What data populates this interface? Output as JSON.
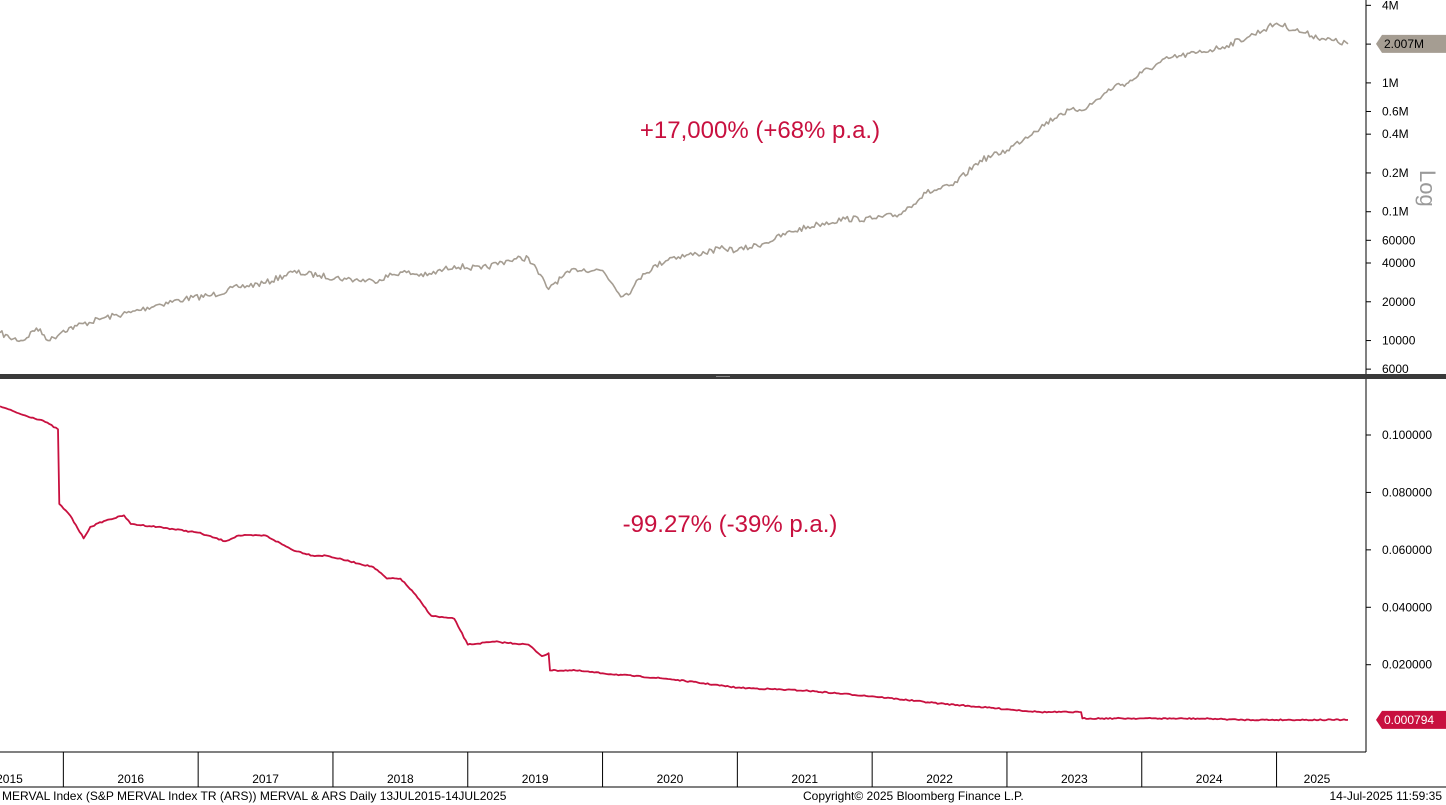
{
  "colors": {
    "merval": "#a59d92",
    "ars": "#c8103f",
    "ars_badge": "#c8103f",
    "merval_badge": "#a59d92"
  },
  "footer": {
    "left": "MERVAL Index (S&P MERVAL Index TR (ARS)) MERVAL & ARS  Daily 13JUL2015-14JUL2025",
    "center": "Copyright© 2025 Bloomberg Finance L.P.",
    "right": "14-Jul-2025 11:59:35"
  },
  "chart_data": [
    {
      "type": "line",
      "scale": "log",
      "scale_label": "Log",
      "annotation": "+17,000% (+68% p.a.)",
      "last_value_label": "2.007M",
      "y_ticks": [
        {
          "v": 4000000,
          "label": "4M"
        },
        {
          "v": 2000000,
          "label": "2M"
        },
        {
          "v": 1000000,
          "label": "1M"
        },
        {
          "v": 600000,
          "label": "0.6M"
        },
        {
          "v": 400000,
          "label": "0.4M"
        },
        {
          "v": 200000,
          "label": "0.2M"
        },
        {
          "v": 100000,
          "label": "0.1M"
        },
        {
          "v": 60000,
          "label": "60000"
        },
        {
          "v": 40000,
          "label": "40000"
        },
        {
          "v": 20000,
          "label": "20000"
        },
        {
          "v": 10000,
          "label": "10000"
        },
        {
          "v": 6000,
          "label": "6000"
        }
      ],
      "ylim": [
        5500,
        4400000
      ],
      "x": [
        2015.53,
        2015.6,
        2015.7,
        2015.8,
        2015.9,
        2016.0,
        2016.1,
        2016.3,
        2016.5,
        2016.7,
        2016.9,
        2017.1,
        2017.3,
        2017.5,
        2017.7,
        2017.9,
        2018.1,
        2018.3,
        2018.5,
        2018.7,
        2018.9,
        2019.1,
        2019.3,
        2019.45,
        2019.6,
        2019.62,
        2019.8,
        2020.0,
        2020.15,
        2020.22,
        2020.3,
        2020.5,
        2020.7,
        2020.9,
        2021.0,
        2021.2,
        2021.4,
        2021.6,
        2021.8,
        2022.0,
        2022.2,
        2022.4,
        2022.6,
        2022.8,
        2023.0,
        2023.2,
        2023.4,
        2023.6,
        2023.8,
        2023.9,
        2024.0,
        2024.2,
        2024.4,
        2024.6,
        2024.8,
        2025.0,
        2025.2,
        2025.35,
        2025.53
      ],
      "values": [
        11500,
        10500,
        10000,
        12500,
        10000,
        12000,
        13000,
        15000,
        16500,
        19000,
        21000,
        22500,
        26000,
        28000,
        34000,
        32000,
        30000,
        29000,
        34000,
        32000,
        38000,
        36000,
        42000,
        44000,
        25000,
        27000,
        36000,
        35000,
        22000,
        25000,
        33000,
        44000,
        47000,
        52000,
        50000,
        57000,
        70000,
        80000,
        88000,
        88000,
        95000,
        140000,
        160000,
        250000,
        300000,
        420000,
        580000,
        650000,
        950000,
        1000000,
        1200000,
        1550000,
        1700000,
        1900000,
        2300000,
        2900000,
        2450000,
        2200000,
        2007000
      ]
    },
    {
      "type": "line",
      "annotation": "-99.27% (-39% p.a.)",
      "last_value_label": "0.000794",
      "y_ticks": [
        {
          "v": 0.1,
          "label": "0.100000"
        },
        {
          "v": 0.08,
          "label": "0.080000"
        },
        {
          "v": 0.06,
          "label": "0.060000"
        },
        {
          "v": 0.04,
          "label": "0.040000"
        },
        {
          "v": 0.02,
          "label": "0.020000"
        }
      ],
      "ylim": [
        -0.0104,
        0.1195
      ],
      "x": [
        2015.53,
        2015.7,
        2015.85,
        2015.96,
        2015.97,
        2016.05,
        2016.15,
        2016.2,
        2016.3,
        2016.45,
        2016.5,
        2016.7,
        2017.0,
        2017.2,
        2017.3,
        2017.5,
        2017.7,
        2017.85,
        2017.95,
        2018.3,
        2018.4,
        2018.5,
        2018.6,
        2018.73,
        2018.9,
        2019.0,
        2019.2,
        2019.45,
        2019.55,
        2019.6,
        2019.61,
        2019.8,
        2020.0,
        2020.5,
        2021.0,
        2021.5,
        2022.0,
        2022.5,
        2023.0,
        2023.25,
        2023.55,
        2023.56,
        2024.0,
        2024.5,
        2024.75,
        2025.53
      ],
      "values": [
        0.11,
        0.107,
        0.105,
        0.102,
        0.076,
        0.072,
        0.064,
        0.068,
        0.07,
        0.072,
        0.069,
        0.068,
        0.066,
        0.063,
        0.065,
        0.065,
        0.06,
        0.058,
        0.058,
        0.054,
        0.05,
        0.05,
        0.045,
        0.037,
        0.036,
        0.027,
        0.028,
        0.027,
        0.023,
        0.024,
        0.018,
        0.018,
        0.017,
        0.015,
        0.012,
        0.011,
        0.009,
        0.0065,
        0.0045,
        0.0035,
        0.0035,
        0.0013,
        0.0013,
        0.0012,
        0.0008,
        0.000794
      ]
    }
  ],
  "x_axis": {
    "year_labels": [
      {
        "label": "2015",
        "x": 2015.6
      },
      {
        "label": "2016",
        "x": 2016.5
      },
      {
        "label": "2017",
        "x": 2017.5
      },
      {
        "label": "2018",
        "x": 2018.5
      },
      {
        "label": "2019",
        "x": 2019.5
      },
      {
        "label": "2020",
        "x": 2020.5
      },
      {
        "label": "2021",
        "x": 2021.5
      },
      {
        "label": "2022",
        "x": 2022.5
      },
      {
        "label": "2023",
        "x": 2023.5
      },
      {
        "label": "2024",
        "x": 2024.5
      },
      {
        "label": "2025",
        "x": 2025.3
      }
    ]
  }
}
